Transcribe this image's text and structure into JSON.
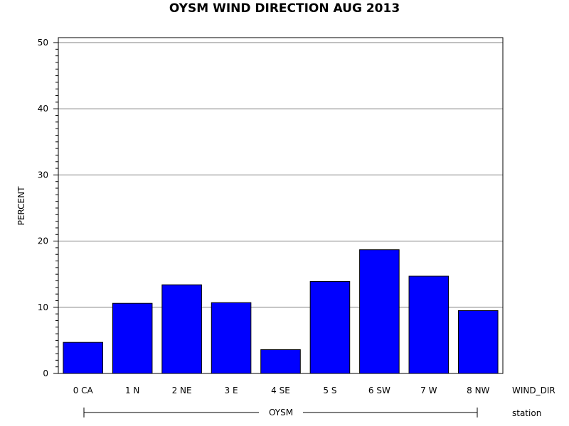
{
  "chart_data": {
    "type": "bar",
    "title": "OYSM WIND DIRECTION AUG 2013",
    "ylabel": "PERCENT",
    "xlabel": "WIND_DIR",
    "group_axis_label": "station",
    "group_name": "OYSM",
    "categories": [
      "0 CA",
      "1 N",
      "2 NE",
      "3 E",
      "4 SE",
      "5 S",
      "6 SW",
      "7 W",
      "8 NW"
    ],
    "values": [
      4.7,
      10.6,
      13.4,
      10.7,
      3.6,
      13.9,
      18.7,
      14.7,
      9.5
    ],
    "ylim": [
      0,
      50
    ],
    "yticks": [
      "0",
      "10",
      "20",
      "30",
      "40",
      "50"
    ],
    "grid": true,
    "bar_color": "#0000ff"
  }
}
